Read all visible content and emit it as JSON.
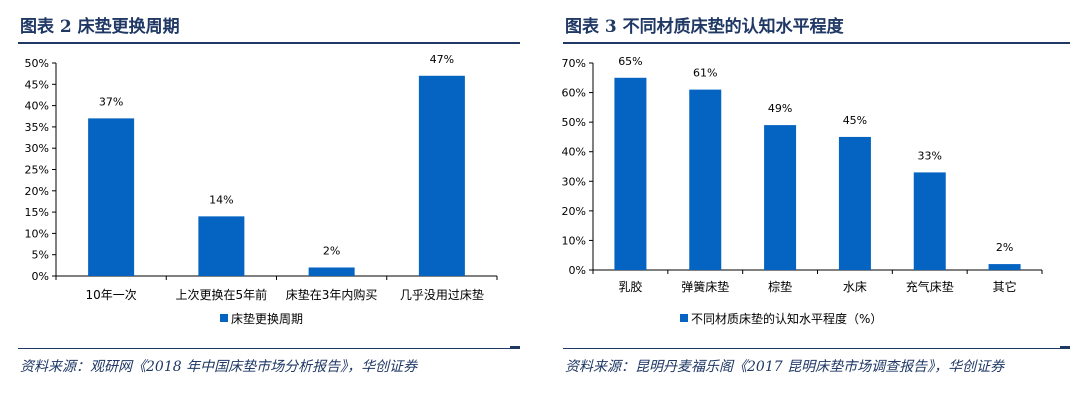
{
  "figures": [
    {
      "title": "图表 2   床垫更换周期",
      "source": "资料来源：观研网《2018 年中国床垫市场分析报告》，华创证券"
    },
    {
      "title": "图表 3   不同材质床垫的认知水平程度",
      "source": "资料来源：昆明丹麦福乐阁《2017 昆明床垫市场调查报告》，华创证券"
    }
  ],
  "colors": {
    "bar": "#0563C1",
    "title": "#1F3864"
  },
  "chart_data": [
    {
      "type": "bar",
      "title": "床垫更换周期",
      "categories": [
        "10年一次",
        "上次更换在5年前",
        "床垫在3年内购买",
        "几乎没用过床垫"
      ],
      "series": [
        {
          "name": "床垫更换周期",
          "values": [
            37,
            14,
            2,
            47
          ]
        }
      ],
      "value_labels": [
        "37%",
        "14%",
        "2%",
        "47%"
      ],
      "ylim": [
        0,
        50
      ],
      "yticks": [
        "0%",
        "5%",
        "10%",
        "15%",
        "20%",
        "25%",
        "30%",
        "35%",
        "40%",
        "45%",
        "50%"
      ],
      "grid": false,
      "legend_position": "bottom"
    },
    {
      "type": "bar",
      "title": "不同材质床垫的认知水平程度",
      "categories": [
        "乳胶",
        "弹簧床垫",
        "棕垫",
        "水床",
        "充气床垫",
        "其它"
      ],
      "series": [
        {
          "name": "不同材质床垫的认知水平程度（%）",
          "values": [
            65,
            61,
            49,
            45,
            33,
            2
          ]
        }
      ],
      "value_labels": [
        "65%",
        "61%",
        "49%",
        "45%",
        "33%",
        "2%"
      ],
      "ylim": [
        0,
        70
      ],
      "yticks": [
        "0%",
        "10%",
        "20%",
        "30%",
        "40%",
        "50%",
        "60%",
        "70%"
      ],
      "grid": false,
      "legend_position": "bottom"
    }
  ]
}
